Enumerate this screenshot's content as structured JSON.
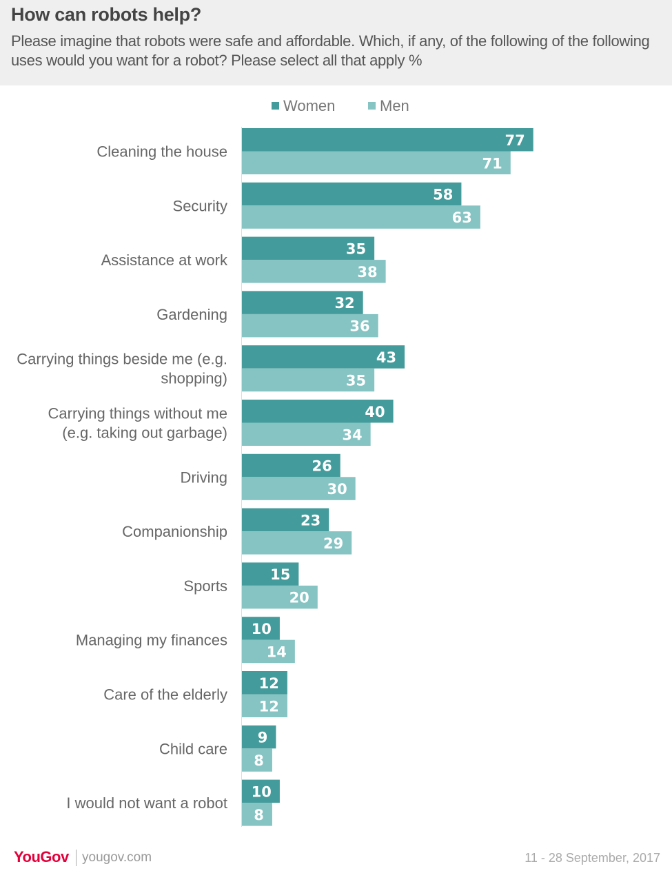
{
  "header": {
    "title": "How can robots help?",
    "subtitle": "Please imagine that robots were safe and affordable. Which, if any, of the following of the following uses would you want for a robot? Please select all that apply %"
  },
  "legend": {
    "women_label": "Women",
    "men_label": "Men"
  },
  "colors": {
    "women": "#449b9b",
    "men": "#86c3c3",
    "header_bg": "#efefef",
    "logo": "#e4003b"
  },
  "chart_data": {
    "type": "bar",
    "orientation": "horizontal",
    "title": "How can robots help?",
    "categories": [
      [
        "Cleaning the house"
      ],
      [
        "Security"
      ],
      [
        "Assistance at work"
      ],
      [
        "Gardening"
      ],
      [
        "Carrying things beside me (e.g.",
        "shopping)"
      ],
      [
        "Carrying things without me",
        "(e.g. taking out garbage)"
      ],
      [
        "Driving"
      ],
      [
        "Companionship"
      ],
      [
        "Sports"
      ],
      [
        "Managing my finances"
      ],
      [
        "Care of the elderly"
      ],
      [
        "Child care"
      ],
      [
        "I would not want a robot"
      ]
    ],
    "series": [
      {
        "name": "Women",
        "values": [
          77,
          58,
          35,
          32,
          43,
          40,
          26,
          23,
          15,
          10,
          12,
          9,
          10
        ]
      },
      {
        "name": "Men",
        "values": [
          71,
          63,
          38,
          36,
          35,
          34,
          30,
          29,
          20,
          14,
          12,
          8,
          8
        ]
      }
    ],
    "xlim": [
      0,
      100
    ],
    "grid": false,
    "legend_position": "top"
  },
  "footer": {
    "logo": "YouGov",
    "site": "yougov.com",
    "date": "11 - 28 September, 2017"
  }
}
